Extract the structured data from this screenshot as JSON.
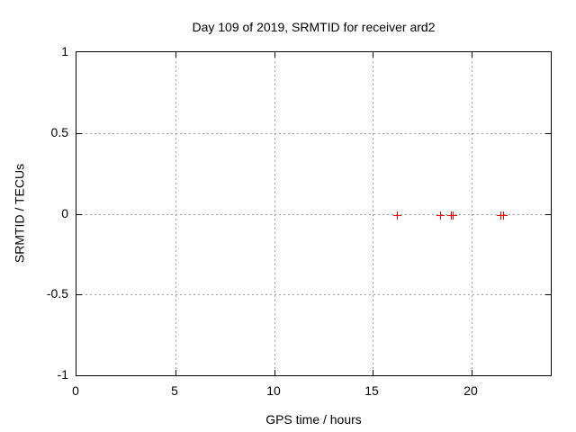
{
  "chart_data": {
    "type": "scatter",
    "title": "Day 109 of 2019, SRMTID for receiver ard2",
    "xlabel": "GPS time / hours",
    "ylabel": "SRMTID / TECUs",
    "xlim": [
      0,
      24
    ],
    "ylim": [
      -1,
      1
    ],
    "xticks": [
      0,
      5,
      10,
      15,
      20
    ],
    "yticks": [
      -1,
      -0.5,
      0,
      0.5,
      1
    ],
    "grid": true,
    "legend_position": "none",
    "marker": "plus",
    "colors": {
      "marker": "#ff0000",
      "grid": "#9c9c9c",
      "border": "#000000",
      "text": "#000000",
      "background": "#ffffff"
    },
    "series": [
      {
        "name": "SRMTID",
        "points": [
          {
            "x": 16.25,
            "y": -0.01
          },
          {
            "x": 18.4,
            "y": -0.01
          },
          {
            "x": 18.95,
            "y": -0.01
          },
          {
            "x": 19.05,
            "y": -0.01
          },
          {
            "x": 21.45,
            "y": -0.01
          },
          {
            "x": 21.6,
            "y": -0.01
          }
        ]
      }
    ]
  }
}
